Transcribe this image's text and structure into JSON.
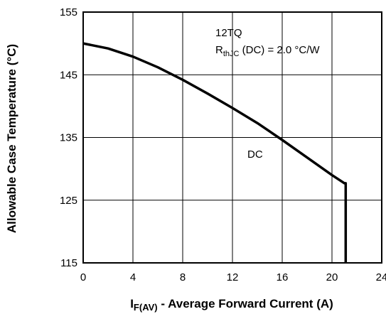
{
  "chart_data": {
    "type": "line",
    "xlim": [
      0,
      24
    ],
    "ylim": [
      115,
      155
    ],
    "xticks": [
      0,
      4,
      8,
      12,
      16,
      20,
      24
    ],
    "yticks": [
      115,
      125,
      135,
      145,
      155
    ],
    "grid": true,
    "xlabel": {
      "main": "I",
      "sub": "F(AV)",
      "rest": " - Average Forward Current (A)"
    },
    "ylabel": "Allowable Case Temperature (°C)",
    "annotations": {
      "part": "12TQ",
      "rth_main": "R",
      "rth_sub": "thJC",
      "rth_rest": " (DC) = 2.0 °C/W",
      "series_label": "DC"
    },
    "series": [
      {
        "name": "DC",
        "x": [
          0,
          2,
          4,
          6,
          8,
          10,
          12,
          14,
          16,
          18,
          20,
          21,
          21.1,
          21.1
        ],
        "y": [
          150.0,
          149.2,
          147.9,
          146.2,
          144.2,
          142.0,
          139.7,
          137.3,
          134.6,
          131.8,
          129.0,
          127.7,
          127.7,
          115
        ]
      }
    ]
  }
}
